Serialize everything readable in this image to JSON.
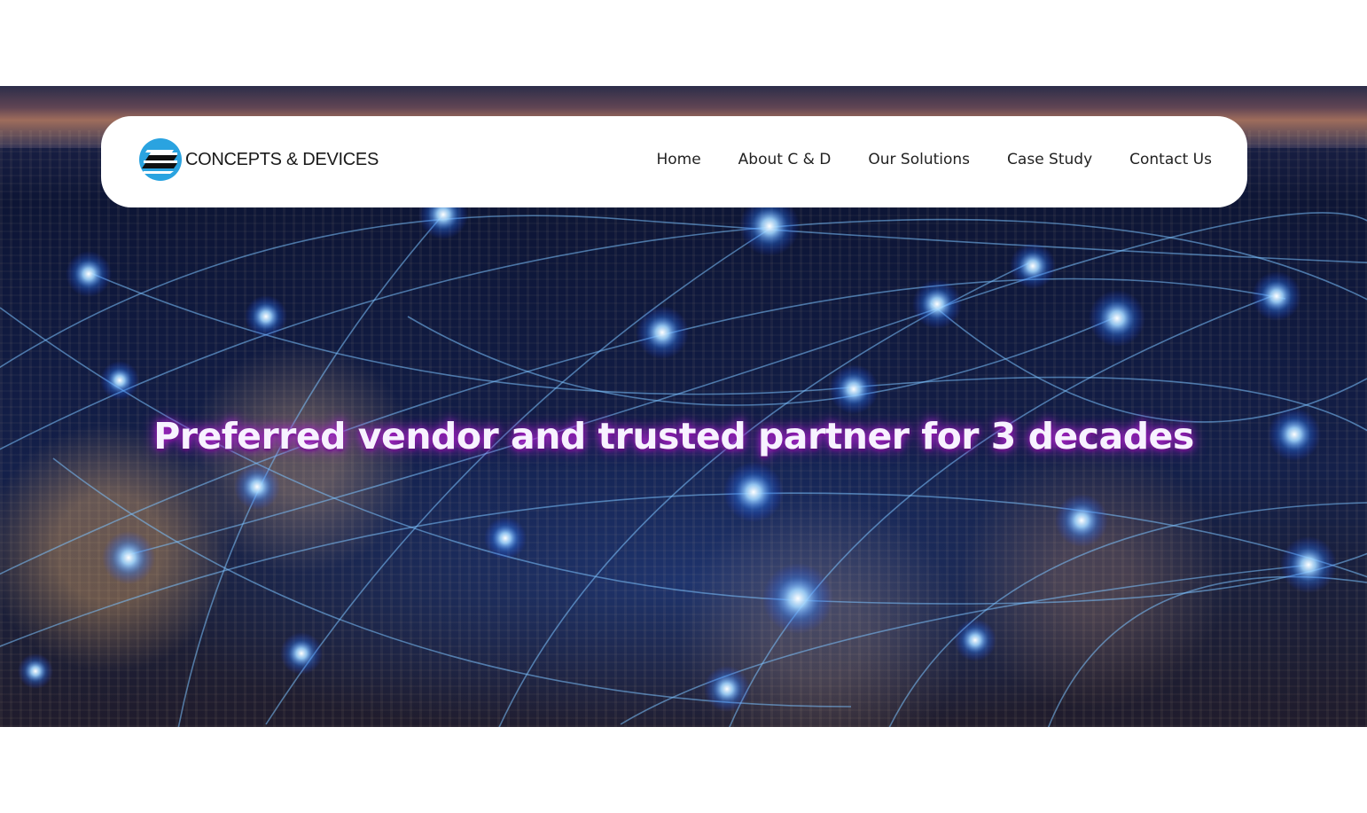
{
  "brand": {
    "name": "CONCEPTS & DEVICES",
    "logo_icon": "globe-logo-icon",
    "accent_color": "#2aa3e0"
  },
  "nav": {
    "items": [
      {
        "label": "Home"
      },
      {
        "label": "About C & D"
      },
      {
        "label": "Our Solutions"
      },
      {
        "label": "Case Study"
      },
      {
        "label": "Contact Us"
      }
    ]
  },
  "hero": {
    "headline": "Preferred vendor and trusted partner for 3 decades",
    "headline_glow_color": "#b828dc",
    "network_color": "#5fb6ff"
  }
}
